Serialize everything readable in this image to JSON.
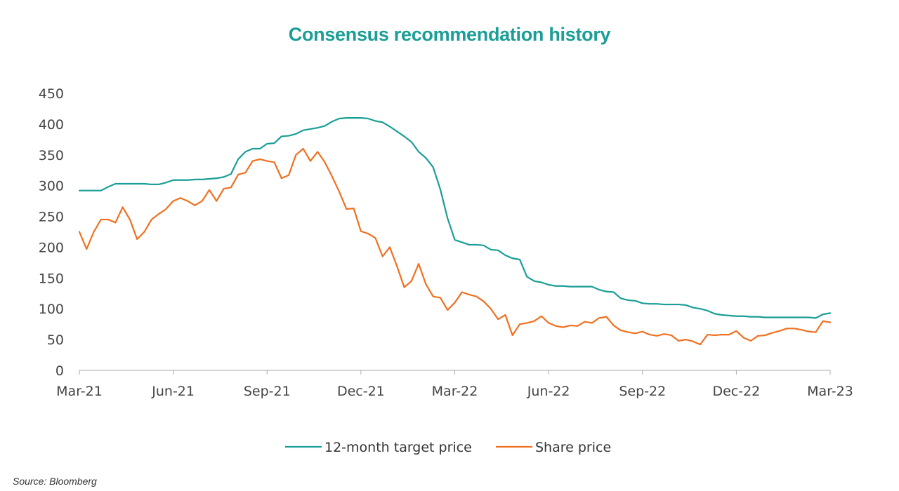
{
  "title": "Consensus recommendation history",
  "source": "Source: Bloomberg",
  "chart_data": {
    "type": "line",
    "title": "Consensus recommendation history",
    "ylim": [
      0,
      450
    ],
    "y_ticks": [
      0,
      50,
      100,
      150,
      200,
      250,
      300,
      350,
      400,
      450
    ],
    "x_ticks": [
      "Mar-21",
      "Jun-21",
      "Sep-21",
      "Dec-21",
      "Mar-22",
      "Jun-22",
      "Sep-22",
      "Dec-22",
      "Mar-23"
    ],
    "grid": false,
    "legend": "bottom",
    "colors": {
      "target": "#1a9e96",
      "share": "#f07020"
    },
    "series": [
      {
        "name": "12-month target price",
        "color": "#1a9e96",
        "values": [
          292,
          292,
          292,
          292,
          298,
          303,
          303,
          303,
          303,
          303,
          302,
          302,
          305,
          309,
          309,
          309,
          310,
          310,
          311,
          312,
          314,
          319,
          343,
          355,
          360,
          360,
          368,
          369,
          380,
          381,
          384,
          390,
          392,
          394,
          397,
          404,
          409,
          410,
          410,
          410,
          409,
          405,
          403,
          396,
          388,
          380,
          371,
          355,
          345,
          330,
          294,
          247,
          212,
          208,
          204,
          204,
          203,
          196,
          195,
          187,
          182,
          180,
          152,
          145,
          143,
          139,
          137,
          137,
          136,
          136,
          136,
          136,
          131,
          128,
          127,
          117,
          114,
          113,
          109,
          108,
          108,
          107,
          107,
          107,
          106,
          102,
          100,
          97,
          92,
          90,
          89,
          88,
          88,
          87,
          87,
          86,
          86,
          86,
          86,
          86,
          86,
          86,
          85,
          91,
          93
        ]
      },
      {
        "name": "Share price",
        "color": "#f07020",
        "values": [
          225,
          197,
          225,
          245,
          245,
          240,
          265,
          245,
          213,
          225,
          245,
          254,
          262,
          275,
          280,
          275,
          268,
          275,
          293,
          275,
          295,
          297,
          318,
          321,
          340,
          343,
          340,
          338,
          312,
          317,
          350,
          360,
          340,
          355,
          338,
          315,
          290,
          262,
          263,
          226,
          222,
          215,
          185,
          200,
          169,
          135,
          145,
          173,
          140,
          120,
          118,
          98,
          110,
          127,
          123,
          120,
          112,
          100,
          83,
          90,
          57,
          75,
          77,
          80,
          88,
          77,
          72,
          70,
          73,
          72,
          79,
          77,
          85,
          87,
          73,
          65,
          62,
          60,
          63,
          58,
          56,
          59,
          57,
          48,
          50,
          47,
          42,
          58,
          57,
          58,
          58,
          64,
          53,
          48,
          56,
          57,
          61,
          64,
          68,
          68,
          66,
          63,
          62,
          80,
          78
        ]
      }
    ]
  }
}
